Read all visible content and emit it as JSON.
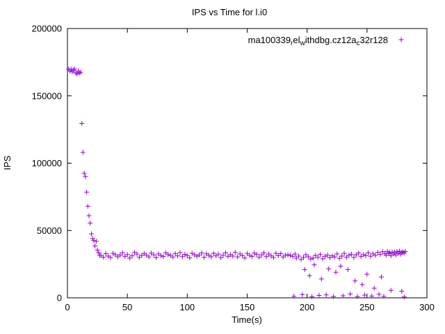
{
  "page": {
    "title": "IPS vs Time for l.i0"
  },
  "accent_color": "#9400d3",
  "chart_data": {
    "type": "scatter",
    "title": "IPS vs Time for l.i0",
    "xlabel": "Time(s)",
    "ylabel": "IPS",
    "xlim": [
      0,
      300
    ],
    "ylim": [
      0,
      200000
    ],
    "xticks": [
      0,
      50,
      100,
      150,
      200,
      250,
      300
    ],
    "yticks": [
      0,
      50000,
      100000,
      150000,
      200000
    ],
    "grid": false,
    "legend_position": "top-right-inside",
    "marker": "plus",
    "series": [
      {
        "name": "ma100339_rel_withdbg.cz12a_c32r128",
        "label_segments": [
          {
            "text": "ma100339",
            "sub": false
          },
          {
            "text": "r",
            "sub": true
          },
          {
            "text": "el",
            "sub": false
          },
          {
            "text": "w",
            "sub": true
          },
          {
            "text": "ithdbg.cz12a",
            "sub": false
          },
          {
            "text": "c",
            "sub": true
          },
          {
            "text": "32r128",
            "sub": false
          }
        ],
        "color": "#9400d3",
        "points": [
          [
            1,
            169800
          ],
          [
            2,
            168500
          ],
          [
            3,
            169900
          ],
          [
            4,
            167800
          ],
          [
            5,
            169000
          ],
          [
            6,
            170000
          ],
          [
            7,
            167100
          ],
          [
            8,
            166300
          ],
          [
            9,
            168500
          ],
          [
            10,
            166900
          ],
          [
            11,
            167500
          ],
          [
            12,
            129500
          ],
          [
            13,
            108000
          ],
          [
            14,
            92500
          ],
          [
            15,
            90000
          ],
          [
            16,
            78500
          ],
          [
            17,
            68000
          ],
          [
            18,
            61000
          ],
          [
            19,
            55500
          ],
          [
            20,
            47500
          ],
          [
            21,
            44000
          ],
          [
            22,
            42500
          ],
          [
            23,
            38500
          ],
          [
            24,
            42000
          ],
          [
            25,
            35500
          ],
          [
            26,
            33500
          ],
          [
            27,
            31500
          ],
          [
            28,
            31500
          ],
          [
            30,
            30200
          ],
          [
            32,
            32800
          ],
          [
            34,
            31000
          ],
          [
            36,
            29800
          ],
          [
            38,
            33000
          ],
          [
            40,
            32000
          ],
          [
            42,
            30500
          ],
          [
            44,
            31800
          ],
          [
            46,
            33500
          ],
          [
            48,
            30800
          ],
          [
            50,
            32200
          ],
          [
            52,
            29500
          ],
          [
            54,
            31200
          ],
          [
            56,
            33800
          ],
          [
            58,
            32500
          ],
          [
            60,
            30000
          ],
          [
            62,
            31500
          ],
          [
            64,
            32900
          ],
          [
            66,
            31700
          ],
          [
            68,
            30400
          ],
          [
            70,
            33200
          ],
          [
            72,
            31900
          ],
          [
            74,
            29900
          ],
          [
            76,
            32600
          ],
          [
            78,
            31300
          ],
          [
            80,
            30700
          ],
          [
            82,
            33400
          ],
          [
            84,
            32100
          ],
          [
            86,
            31600
          ],
          [
            88,
            30300
          ],
          [
            90,
            32800
          ],
          [
            92,
            31100
          ],
          [
            94,
            33600
          ],
          [
            96,
            30600
          ],
          [
            98,
            32300
          ],
          [
            100,
            31400
          ],
          [
            102,
            29700
          ],
          [
            104,
            33100
          ],
          [
            106,
            32000
          ],
          [
            108,
            30900
          ],
          [
            110,
            31800
          ],
          [
            112,
            33300
          ],
          [
            114,
            30100
          ],
          [
            116,
            32700
          ],
          [
            118,
            31500
          ],
          [
            120,
            30500
          ],
          [
            122,
            33000
          ],
          [
            124,
            31200
          ],
          [
            126,
            32400
          ],
          [
            128,
            29800
          ],
          [
            130,
            31700
          ],
          [
            132,
            33500
          ],
          [
            134,
            30800
          ],
          [
            136,
            32100
          ],
          [
            138,
            31000
          ],
          [
            140,
            33700
          ],
          [
            142,
            30400
          ],
          [
            144,
            32600
          ],
          [
            146,
            31300
          ],
          [
            148,
            29600
          ],
          [
            150,
            32900
          ],
          [
            152,
            31600
          ],
          [
            154,
            30700
          ],
          [
            156,
            33200
          ],
          [
            158,
            32200
          ],
          [
            160,
            30200
          ],
          [
            162,
            31900
          ],
          [
            164,
            33400
          ],
          [
            166,
            30600
          ],
          [
            168,
            32500
          ],
          [
            170,
            31100
          ],
          [
            172,
            29900
          ],
          [
            174,
            33100
          ],
          [
            176,
            31400
          ],
          [
            178,
            32800
          ],
          [
            180,
            30300
          ],
          [
            182,
            31700
          ],
          [
            184,
            32000
          ],
          [
            186,
            31500
          ],
          [
            188,
            30800
          ],
          [
            190,
            32500
          ],
          [
            191,
            29500
          ],
          [
            193,
            31000
          ],
          [
            195,
            28500
          ],
          [
            197,
            30000
          ],
          [
            199,
            32000
          ],
          [
            201,
            30500
          ],
          [
            203,
            28800
          ],
          [
            205,
            29500
          ],
          [
            207,
            31500
          ],
          [
            209,
            30000
          ],
          [
            211,
            32200
          ],
          [
            213,
            29000
          ],
          [
            215,
            30800
          ],
          [
            217,
            31800
          ],
          [
            219,
            29800
          ],
          [
            221,
            31200
          ],
          [
            223,
            30400
          ],
          [
            225,
            32600
          ],
          [
            227,
            29300
          ],
          [
            229,
            31000
          ],
          [
            231,
            33000
          ],
          [
            233,
            30200
          ],
          [
            235,
            31600
          ],
          [
            237,
            32400
          ],
          [
            239,
            30000
          ],
          [
            241,
            31900
          ],
          [
            243,
            33300
          ],
          [
            245,
            30700
          ],
          [
            247,
            32100
          ],
          [
            249,
            31300
          ],
          [
            251,
            33500
          ],
          [
            253,
            30900
          ],
          [
            255,
            32700
          ],
          [
            257,
            31500
          ],
          [
            259,
            33800
          ],
          [
            261,
            32300
          ],
          [
            263,
            34200
          ],
          [
            265,
            33000
          ],
          [
            266,
            31700
          ],
          [
            267,
            34500
          ],
          [
            268,
            32900
          ],
          [
            269,
            33600
          ],
          [
            270,
            31200
          ],
          [
            271,
            34000
          ],
          [
            272,
            32600
          ],
          [
            273,
            33900
          ],
          [
            274,
            31800
          ],
          [
            275,
            34300
          ],
          [
            276,
            33100
          ],
          [
            277,
            34600
          ],
          [
            278,
            32400
          ],
          [
            279,
            33700
          ],
          [
            280,
            34100
          ],
          [
            281,
            33300
          ],
          [
            282,
            34400
          ],
          [
            189,
            1200
          ],
          [
            196,
            2500
          ],
          [
            204,
            800
          ],
          [
            210,
            1800
          ],
          [
            216,
            2200
          ],
          [
            222,
            1000
          ],
          [
            230,
            1500
          ],
          [
            236,
            2800
          ],
          [
            242,
            900
          ],
          [
            248,
            2000
          ],
          [
            254,
            1300
          ],
          [
            260,
            2600
          ],
          [
            264,
            1100
          ],
          [
            281,
            600
          ],
          [
            198,
            21000
          ],
          [
            202,
            16500
          ],
          [
            206,
            24500
          ],
          [
            212,
            14000
          ],
          [
            218,
            21500
          ],
          [
            224,
            19000
          ],
          [
            228,
            23500
          ],
          [
            234,
            21000
          ],
          [
            240,
            12500
          ],
          [
            246,
            9800
          ],
          [
            250,
            17500
          ],
          [
            256,
            7200
          ],
          [
            262,
            15500
          ],
          [
            270,
            5600
          ],
          [
            279,
            4900
          ]
        ]
      }
    ]
  }
}
